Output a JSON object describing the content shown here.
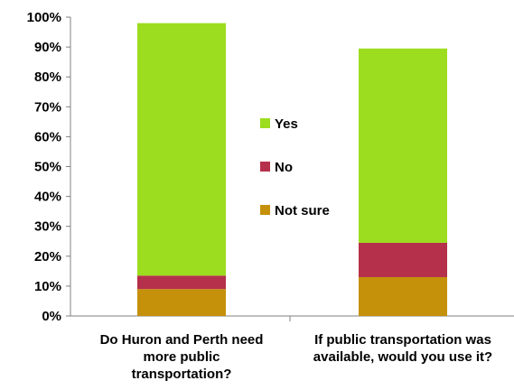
{
  "chart_data": {
    "type": "bar",
    "stacked": true,
    "categories": [
      [
        "Do Huron and Perth need",
        "more public",
        "transportation?"
      ],
      [
        "If public transportation was",
        "available, would you use it?"
      ]
    ],
    "series": [
      {
        "name": "Not sure",
        "values": [
          9,
          13
        ],
        "color": "#C5900A"
      },
      {
        "name": "No",
        "values": [
          4.5,
          11.5
        ],
        "color": "#B5304A"
      },
      {
        "name": "Yes",
        "values": [
          84.5,
          65
        ],
        "color": "#9CDD1F"
      }
    ],
    "ylim": [
      0,
      100
    ],
    "yticks": [
      "0%",
      "10%",
      "20%",
      "30%",
      "40%",
      "50%",
      "60%",
      "70%",
      "80%",
      "90%",
      "100%"
    ],
    "legend_order": [
      "Yes",
      "No",
      "Not sure"
    ],
    "legend_placement": "center",
    "grid": false
  }
}
